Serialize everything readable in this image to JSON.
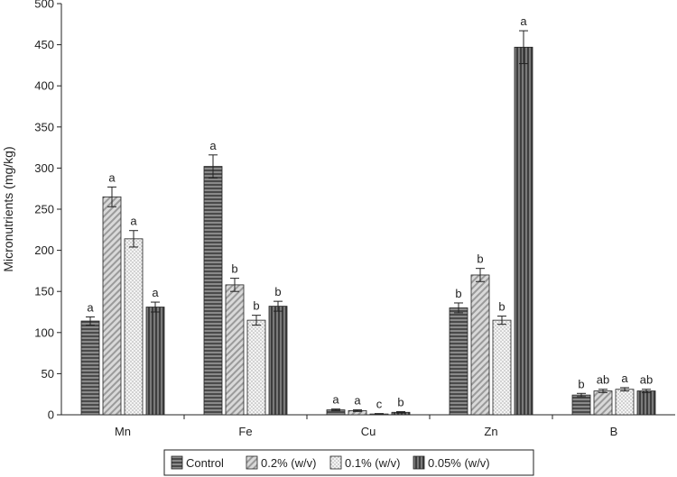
{
  "chart_data": {
    "type": "bar",
    "title": "",
    "xlabel": "",
    "ylabel": "Micronutrients (mg/kg)",
    "ylim": [
      0,
      500
    ],
    "yticks": [
      0,
      50,
      100,
      150,
      200,
      250,
      300,
      350,
      400,
      450,
      500
    ],
    "categories": [
      "Mn",
      "Fe",
      "Cu",
      "Zn",
      "B"
    ],
    "grid": false,
    "legend_position": "bottom",
    "series": [
      {
        "name": "Control",
        "color": "#6e6e6e",
        "pattern": "horizontal-stripes",
        "values": [
          114,
          302,
          6,
          130,
          24
        ],
        "errors": [
          5,
          14,
          1,
          6,
          2
        ],
        "letters": [
          "a",
          "a",
          "a",
          "b",
          "b"
        ]
      },
      {
        "name": "0.2% (w/v)",
        "color": "#bdbdbd",
        "pattern": "diagonal-hatch",
        "values": [
          265,
          158,
          5,
          170,
          29
        ],
        "errors": [
          12,
          8,
          1,
          8,
          2
        ],
        "letters": [
          "a",
          "b",
          "a",
          "b",
          "ab"
        ]
      },
      {
        "name": "0.1% (w/v)",
        "color": "#ececec",
        "pattern": "dots",
        "values": [
          214,
          115,
          1,
          115,
          31
        ],
        "errors": [
          10,
          6,
          0.5,
          5,
          2
        ],
        "letters": [
          "a",
          "b",
          "c",
          "b",
          "a"
        ]
      },
      {
        "name": "0.05% (w/v)",
        "color": "#5e5e5e",
        "pattern": "vertical-stripes",
        "values": [
          131,
          132,
          3,
          447,
          29
        ],
        "errors": [
          6,
          6,
          0.8,
          20,
          2
        ],
        "letters": [
          "a",
          "b",
          "b",
          "a",
          "ab"
        ]
      }
    ]
  }
}
